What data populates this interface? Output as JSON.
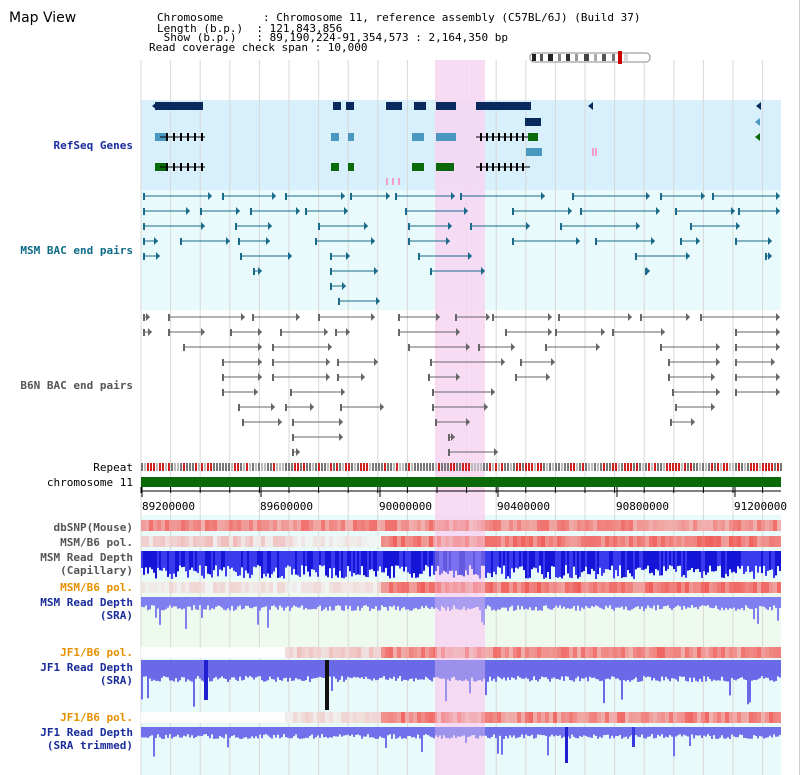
{
  "view_title": "Map View",
  "info": {
    "line1": "Chromosome      : Chromosome 11, reference assembly (C57BL/6J) (Build 37)",
    "line2": "Length (b.p.)  : 121,843,856",
    "line3": " Show (b.p.)   : 89,190,224-91,354,573 : 2,164,350 bp",
    "line4": "Read coverage check span : 10,000"
  },
  "tracks": {
    "refseq": "RefSeq Genes",
    "msm_bac": "MSM BAC end pairs",
    "b6n_bac": "B6N BAC end pairs",
    "repeat": "Repeat",
    "chrom": "chromosome 11",
    "dbsnp": "dbSNP(Mouse)",
    "msm_pol1": "MSM/B6 pol.",
    "msm_depth_cap_1": "MSM Read Depth",
    "msm_depth_cap_2": "(Capillary)",
    "msm_pol2": "MSM/B6 pol.",
    "msm_depth_sra_1": "MSM Read Depth",
    "msm_depth_sra_2": "(SRA)",
    "jf1_pol1": "JF1/B6 pol.",
    "jf1_depth_sra_1": "JF1 Read Depth",
    "jf1_depth_sra_2": "(SRA)",
    "jf1_pol2": "JF1/B6 pol.",
    "jf1_depth_trim_1": "JF1 Read Depth",
    "jf1_depth_trim_2": "(SRA trimmed)"
  },
  "axis": {
    "ticks": [
      "89200000",
      "89600000",
      "90000000",
      "90400000",
      "90800000",
      "91200000"
    ]
  },
  "colors": {
    "refseq_bg": "#d8f0fb",
    "msm_bg": "#e8fafb",
    "gene_navy": "#0a2a5e",
    "gene_light": "#4a98c0",
    "gene_green": "#0a6a0a",
    "highlight": "#f7d6f2",
    "chrom_green": "#0a6a0a",
    "snp_red": "#ef6060",
    "depth_blue": "#2020e0",
    "sra_blue": "#7f7ff0"
  }
}
